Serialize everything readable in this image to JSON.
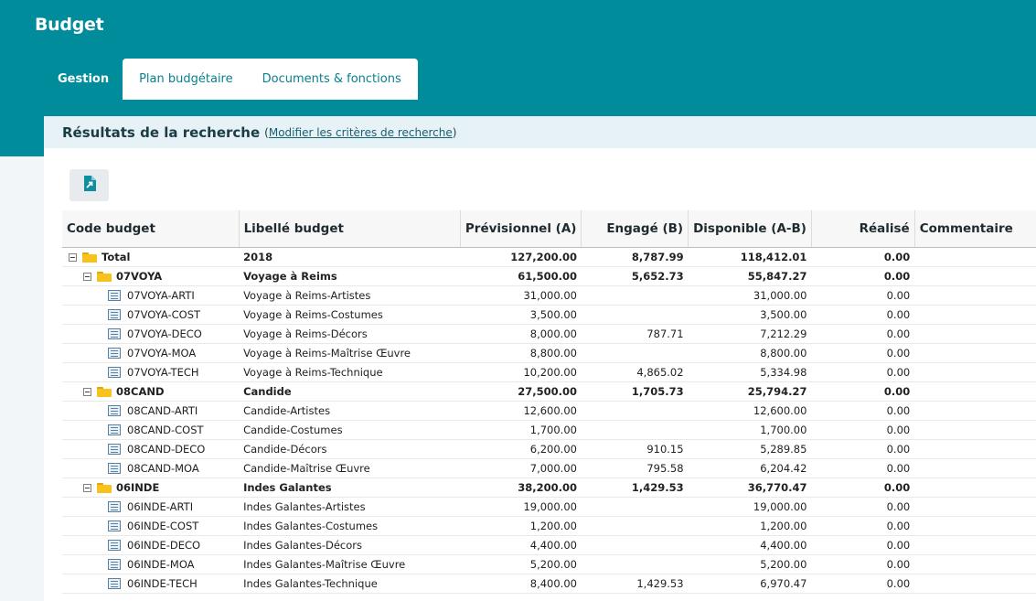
{
  "app": {
    "title": "Budget"
  },
  "tabs": [
    {
      "label": "Gestion",
      "active": true
    },
    {
      "label": "Plan budgétaire",
      "active": false
    },
    {
      "label": "Documents & fonctions",
      "active": false
    }
  ],
  "results": {
    "title": "Résultats de la recherche",
    "paren_open": "(",
    "link_label": "Modifier les critères de recherche",
    "paren_close": ")",
    "export_icon": "export-icon"
  },
  "colors": {
    "brand": "#008c9a",
    "header_panel": "#e6f2f5",
    "folder": "#f6c21b"
  },
  "table": {
    "columns": [
      "Code budget",
      "Libellé budget",
      "Prévisionnel (A)",
      "Engagé (B)",
      "Disponible (A-B)",
      "Réalisé",
      "Commentaire"
    ],
    "rows": [
      {
        "level": 0,
        "kind": "folder",
        "code": "Total",
        "label": "2018",
        "prev": "127,200.00",
        "eng": "8,787.99",
        "disp": "118,412.01",
        "real": "0.00",
        "comment": ""
      },
      {
        "level": 1,
        "kind": "folder",
        "code": "07VOYA",
        "label": "Voyage à Reims",
        "prev": "61,500.00",
        "eng": "5,652.73",
        "disp": "55,847.27",
        "real": "0.00",
        "comment": ""
      },
      {
        "level": 2,
        "kind": "doc",
        "code": "07VOYA-ARTI",
        "label": "Voyage à Reims-Artistes",
        "prev": "31,000.00",
        "eng": "",
        "disp": "31,000.00",
        "real": "0.00",
        "comment": ""
      },
      {
        "level": 2,
        "kind": "doc",
        "code": "07VOYA-COST",
        "label": "Voyage à Reims-Costumes",
        "prev": "3,500.00",
        "eng": "",
        "disp": "3,500.00",
        "real": "0.00",
        "comment": ""
      },
      {
        "level": 2,
        "kind": "doc",
        "code": "07VOYA-DECO",
        "label": "Voyage à Reims-Décors",
        "prev": "8,000.00",
        "eng": "787.71",
        "disp": "7,212.29",
        "real": "0.00",
        "comment": ""
      },
      {
        "level": 2,
        "kind": "doc",
        "code": "07VOYA-MOA",
        "label": "Voyage à Reims-Maîtrise Œuvre",
        "prev": "8,800.00",
        "eng": "",
        "disp": "8,800.00",
        "real": "0.00",
        "comment": ""
      },
      {
        "level": 2,
        "kind": "doc",
        "code": "07VOYA-TECH",
        "label": "Voyage à Reims-Technique",
        "prev": "10,200.00",
        "eng": "4,865.02",
        "disp": "5,334.98",
        "real": "0.00",
        "comment": ""
      },
      {
        "level": 1,
        "kind": "folder",
        "code": "08CAND",
        "label": "Candide",
        "prev": "27,500.00",
        "eng": "1,705.73",
        "disp": "25,794.27",
        "real": "0.00",
        "comment": ""
      },
      {
        "level": 2,
        "kind": "doc",
        "code": "08CAND-ARTI",
        "label": "Candide-Artistes",
        "prev": "12,600.00",
        "eng": "",
        "disp": "12,600.00",
        "real": "0.00",
        "comment": ""
      },
      {
        "level": 2,
        "kind": "doc",
        "code": "08CAND-COST",
        "label": "Candide-Costumes",
        "prev": "1,700.00",
        "eng": "",
        "disp": "1,700.00",
        "real": "0.00",
        "comment": ""
      },
      {
        "level": 2,
        "kind": "doc",
        "code": "08CAND-DECO",
        "label": "Candide-Décors",
        "prev": "6,200.00",
        "eng": "910.15",
        "disp": "5,289.85",
        "real": "0.00",
        "comment": ""
      },
      {
        "level": 2,
        "kind": "doc",
        "code": "08CAND-MOA",
        "label": "Candide-Maîtrise Œuvre",
        "prev": "7,000.00",
        "eng": "795.58",
        "disp": "6,204.42",
        "real": "0.00",
        "comment": ""
      },
      {
        "level": 1,
        "kind": "folder",
        "code": "06INDE",
        "label": "Indes Galantes",
        "prev": "38,200.00",
        "eng": "1,429.53",
        "disp": "36,770.47",
        "real": "0.00",
        "comment": ""
      },
      {
        "level": 2,
        "kind": "doc",
        "code": "06INDE-ARTI",
        "label": "Indes Galantes-Artistes",
        "prev": "19,000.00",
        "eng": "",
        "disp": "19,000.00",
        "real": "0.00",
        "comment": ""
      },
      {
        "level": 2,
        "kind": "doc",
        "code": "06INDE-COST",
        "label": "Indes Galantes-Costumes",
        "prev": "1,200.00",
        "eng": "",
        "disp": "1,200.00",
        "real": "0.00",
        "comment": ""
      },
      {
        "level": 2,
        "kind": "doc",
        "code": "06INDE-DECO",
        "label": "Indes Galantes-Décors",
        "prev": "4,400.00",
        "eng": "",
        "disp": "4,400.00",
        "real": "0.00",
        "comment": ""
      },
      {
        "level": 2,
        "kind": "doc",
        "code": "06INDE-MOA",
        "label": "Indes Galantes-Maîtrise Œuvre",
        "prev": "5,200.00",
        "eng": "",
        "disp": "5,200.00",
        "real": "0.00",
        "comment": ""
      },
      {
        "level": 2,
        "kind": "doc",
        "code": "06INDE-TECH",
        "label": "Indes Galantes-Technique",
        "prev": "8,400.00",
        "eng": "1,429.53",
        "disp": "6,970.47",
        "real": "0.00",
        "comment": ""
      }
    ]
  }
}
